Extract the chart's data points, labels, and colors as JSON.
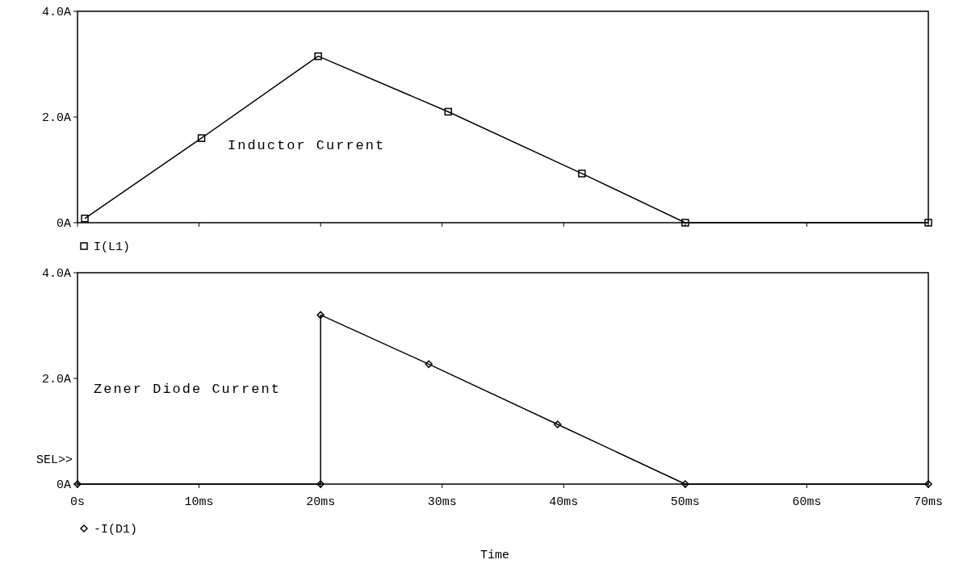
{
  "chart_data": [
    {
      "type": "line",
      "xlim": [
        0,
        70
      ],
      "ylim": [
        0,
        4
      ],
      "xticks": [
        {
          "value": 0,
          "label": null
        },
        {
          "value": 10,
          "label": null
        },
        {
          "value": 20,
          "label": null
        },
        {
          "value": 30,
          "label": null
        },
        {
          "value": 40,
          "label": null
        },
        {
          "value": 50,
          "label": null
        },
        {
          "value": 60,
          "label": null
        },
        {
          "value": 70,
          "label": null
        }
      ],
      "yticks": [
        {
          "value": 0,
          "label": "0A"
        },
        {
          "value": 2,
          "label": "2.0A"
        },
        {
          "value": 4,
          "label": "4.0A"
        }
      ],
      "tick_labels": "y",
      "legend": "bottom left",
      "grid": false,
      "series": [
        {
          "name": "I(L1)",
          "color": "#000000",
          "marker": "square",
          "x": [
            0.6,
            10.2,
            19.8,
            30.5,
            41.5,
            50,
            70
          ],
          "values": [
            0.08,
            1.6,
            3.15,
            2.1,
            0.93,
            0,
            0
          ]
        }
      ],
      "annotations": [
        "Inductor Current"
      ]
    },
    {
      "type": "line",
      "xlim": [
        0,
        70
      ],
      "ylim": [
        0,
        4
      ],
      "xticks": [
        {
          "value": 0,
          "label": "0s"
        },
        {
          "value": 10,
          "label": "10ms"
        },
        {
          "value": 20,
          "label": "20ms"
        },
        {
          "value": 30,
          "label": "30ms"
        },
        {
          "value": 40,
          "label": "40ms"
        },
        {
          "value": 50,
          "label": "50ms"
        },
        {
          "value": 60,
          "label": "60ms"
        },
        {
          "value": 70,
          "label": "70ms"
        }
      ],
      "yticks": [
        {
          "value": 0,
          "label": "0A"
        },
        {
          "value": 2,
          "label": "2.0A"
        },
        {
          "value": 4,
          "label": "4.0A"
        }
      ],
      "xlabel": "Time",
      "legend": "bottom left",
      "grid": false,
      "series": [
        {
          "name": "-I(D1)",
          "color": "#000000",
          "marker": "diamond",
          "x": [
            0,
            20,
            20,
            28.9,
            39.5,
            50,
            70
          ],
          "values": [
            0,
            0,
            3.2,
            2.27,
            1.13,
            0,
            0
          ]
        }
      ],
      "annotations": [
        "Zener Diode Current",
        "SEL>>"
      ]
    }
  ]
}
